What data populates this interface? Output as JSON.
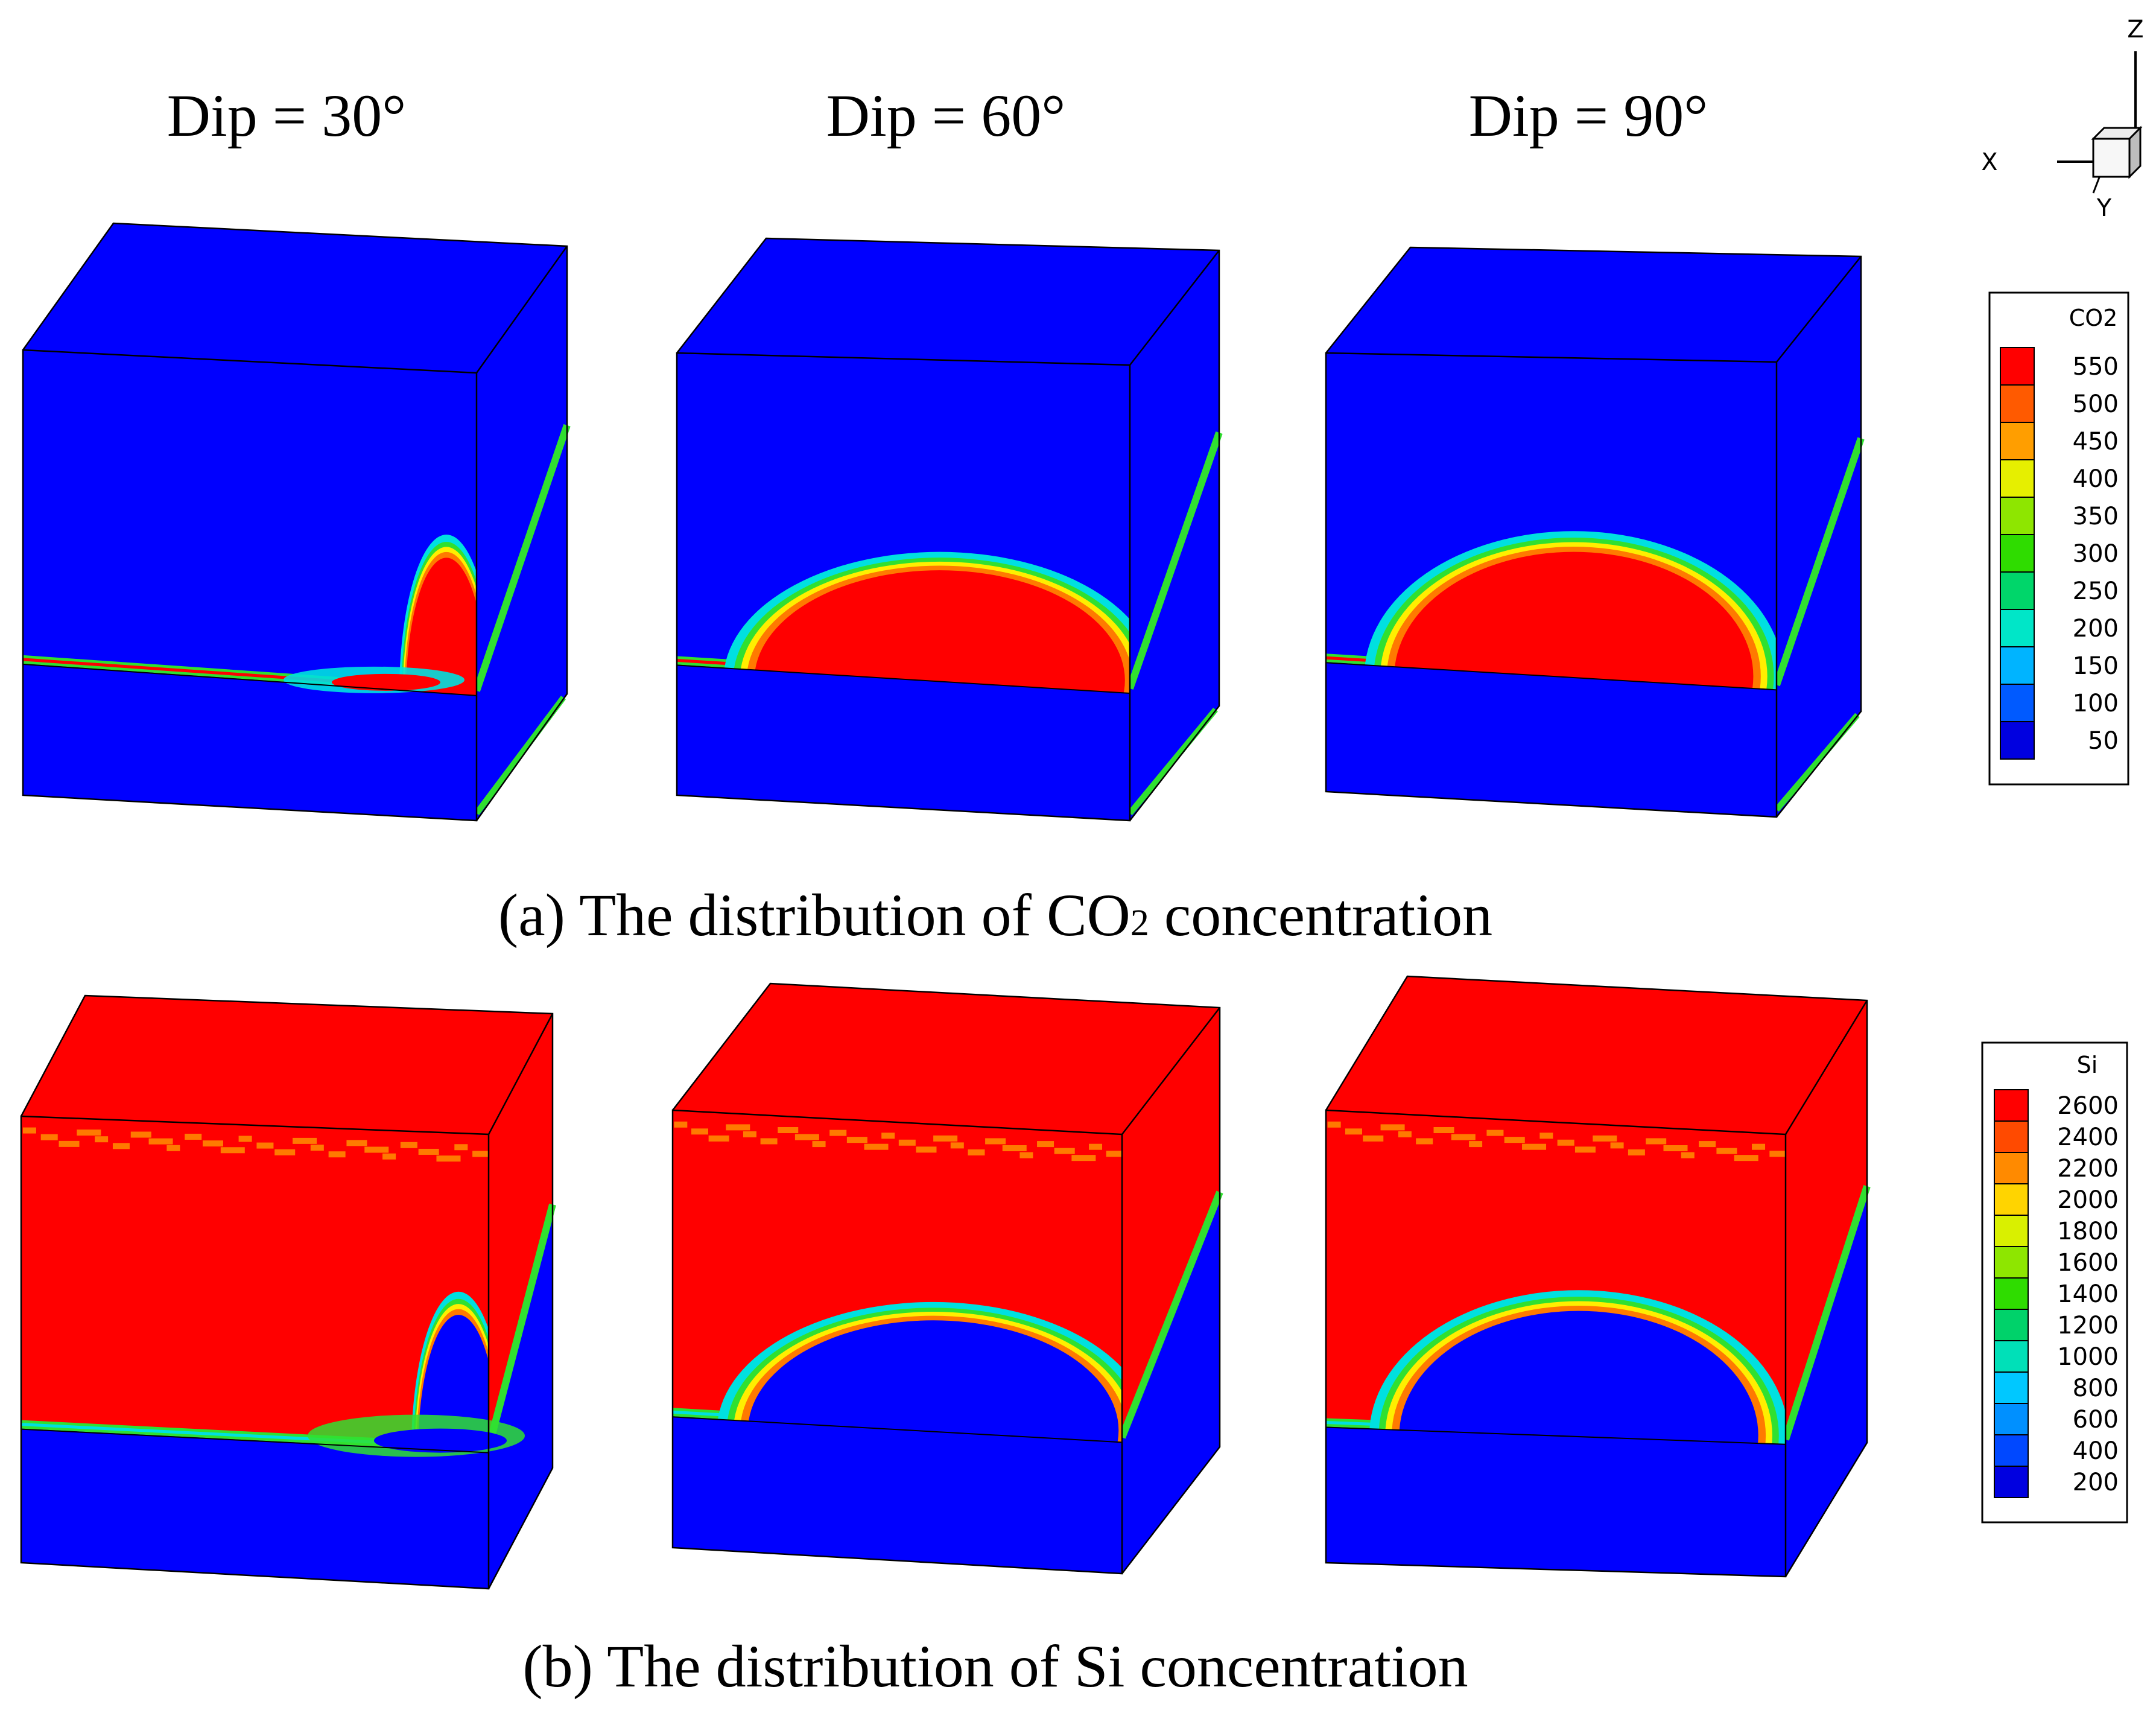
{
  "columns": [
    {
      "title": "Dip = 30°",
      "dip": 30
    },
    {
      "title": "Dip = 60°",
      "dip": 60
    },
    {
      "title": "Dip = 90°",
      "dip": 90
    }
  ],
  "captions": {
    "a_prefix": "(a) The distribution of CO",
    "a_sub": "2",
    "a_suffix": " concentration",
    "b": "(b) The distribution of Si concentration"
  },
  "axes": {
    "x": "X",
    "y": "Y",
    "z": "Z"
  },
  "legends": {
    "co2": {
      "title": "CO2",
      "levels": [
        "550",
        "500",
        "450",
        "400",
        "350",
        "300",
        "250",
        "200",
        "150",
        "100",
        "50"
      ],
      "colors": [
        "#ff0000",
        "#ff5a00",
        "#ff9e00",
        "#e6ef00",
        "#8ee600",
        "#2fdc00",
        "#00d66a",
        "#00e6c8",
        "#00b4ff",
        "#005aff",
        "#0000e0"
      ]
    },
    "si": {
      "title": "Si",
      "levels": [
        "2600",
        "2400",
        "2200",
        "2000",
        "1800",
        "1600",
        "1400",
        "1200",
        "1000",
        "800",
        "600",
        "400",
        "200"
      ],
      "colors": [
        "#ff0000",
        "#ff4a00",
        "#ff8a00",
        "#ffd400",
        "#d9f000",
        "#8ee600",
        "#2fdc00",
        "#00d26a",
        "#00e0b8",
        "#00c8ff",
        "#0090ff",
        "#0048ff",
        "#0000e0"
      ]
    }
  },
  "palette": {
    "high": "#ff0000",
    "low": "#0000ff",
    "mid_orange": "#ff7a00",
    "mid_yellow": "#ffee00",
    "mid_green": "#30e030",
    "mid_cyan": "#00e0e0"
  }
}
